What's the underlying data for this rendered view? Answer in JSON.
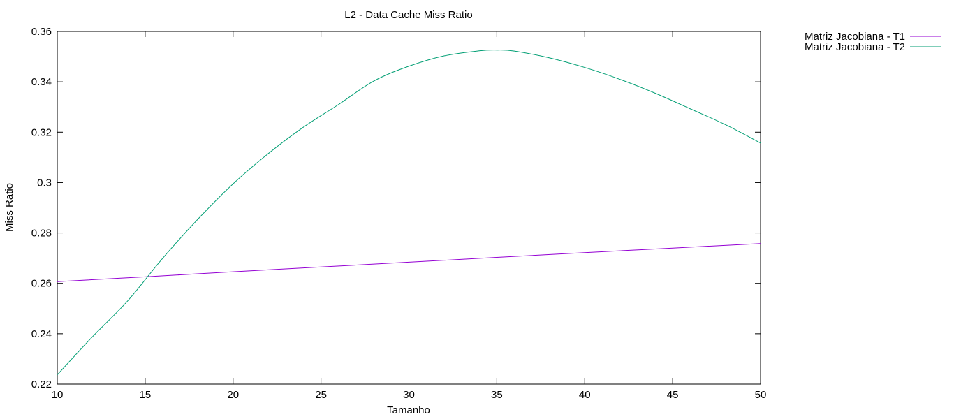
{
  "chart_data": {
    "type": "line",
    "title": "L2 - Data Cache Miss Ratio",
    "xlabel": "Tamanho",
    "ylabel": "Miss Ratio",
    "xlim": [
      10,
      50
    ],
    "ylim": [
      0.22,
      0.36
    ],
    "xticks": [
      10,
      15,
      20,
      25,
      30,
      35,
      40,
      45,
      50
    ],
    "xtick_labels": [
      "10",
      "15",
      "20",
      "25",
      "30",
      "35",
      "40",
      "45",
      "50"
    ],
    "yticks": [
      0.22,
      0.24,
      0.26,
      0.28,
      0.3,
      0.32,
      0.34,
      0.36
    ],
    "ytick_labels": [
      "0.22",
      "0.24",
      "0.26",
      "0.28",
      "0.3",
      "0.32",
      "0.34",
      "0.36"
    ],
    "grid": false,
    "legend_position": "outside-right-top",
    "series": [
      {
        "name": "Matriz Jacobiana - T1",
        "color": "#9400d3",
        "x": [
          10,
          15,
          20,
          25,
          30,
          35,
          40,
          45,
          50
        ],
        "y": [
          0.2607,
          0.2626,
          0.2646,
          0.2665,
          0.2684,
          0.2703,
          0.2722,
          0.274,
          0.2758
        ]
      },
      {
        "name": "Matriz Jacobiana - T2",
        "color": "#009e73",
        "x": [
          10,
          12,
          14,
          16,
          18,
          20,
          22,
          24,
          26,
          28,
          30,
          32,
          34,
          35,
          36,
          38,
          40,
          42,
          44,
          46,
          48,
          50
        ],
        "y": [
          0.2237,
          0.2388,
          0.253,
          0.27,
          0.2855,
          0.2995,
          0.3115,
          0.322,
          0.331,
          0.3403,
          0.3462,
          0.3503,
          0.3523,
          0.3526,
          0.3522,
          0.3495,
          0.3457,
          0.341,
          0.3355,
          0.3293,
          0.323,
          0.3157
        ]
      }
    ]
  }
}
